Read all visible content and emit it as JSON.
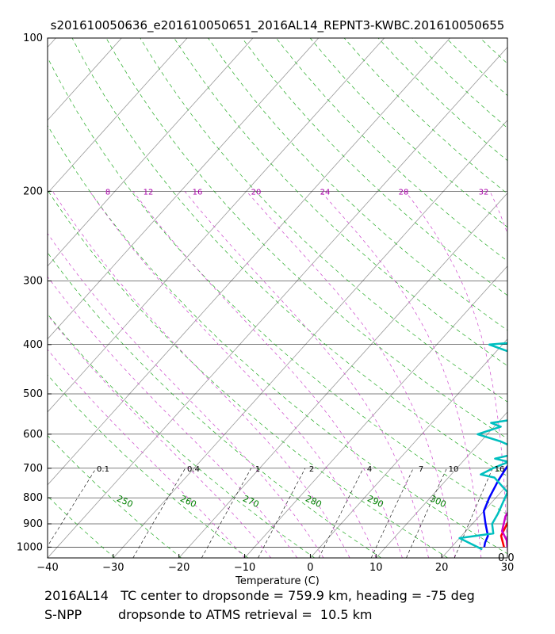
{
  "chart_data": {
    "type": "line",
    "subtype": "skew-t log-p",
    "title": "s201610050636_e201610050651_2016AL14_REPNT3-KWBC.201610050655",
    "xlabel": "Temperature (C)",
    "ylabel": "",
    "xlim": [
      -40,
      30
    ],
    "ylim": [
      1050,
      100
    ],
    "x_ticks": [
      -40,
      -30,
      -20,
      -10,
      0,
      10,
      20,
      30
    ],
    "y_ticks": [
      100,
      200,
      300,
      400,
      500,
      600,
      700,
      800,
      900,
      1000
    ],
    "mixing_ratio_labels": [
      "0.1",
      "0.4",
      "1",
      "2",
      "4",
      "7",
      "10",
      "16"
    ],
    "mixing_ratio_values": [
      0.1,
      0.4,
      1,
      2,
      4,
      7,
      10,
      16
    ],
    "dry_adiabat_labels": [
      "250",
      "260",
      "270",
      "280",
      "290",
      "300"
    ],
    "moist_adiabat_labels": [
      "8",
      "12",
      "16",
      "20",
      "24",
      "28",
      "32"
    ],
    "corner_label": "0.0",
    "series": [
      {
        "name": "temperature",
        "color": "#ff0000",
        "points": [
          [
            28,
            1000
          ],
          [
            26,
            950
          ],
          [
            24.5,
            850
          ],
          [
            24,
            760
          ],
          [
            23.5,
            700
          ],
          [
            22,
            600
          ],
          [
            21,
            550
          ],
          [
            20,
            500
          ],
          [
            18.5,
            450
          ],
          [
            17,
            400
          ],
          [
            15.5,
            360
          ],
          [
            13.5,
            320
          ],
          [
            12,
            300
          ],
          [
            8,
            250
          ],
          [
            5,
            220
          ],
          [
            2,
            200
          ],
          [
            -3,
            170
          ],
          [
            -6.5,
            150
          ],
          [
            -8.5,
            140
          ],
          [
            -8,
            130
          ],
          [
            -7,
            120
          ],
          [
            -5,
            110
          ],
          [
            -3,
            100
          ]
        ]
      },
      {
        "name": "dewpoint",
        "color": "#0000ff",
        "points": [
          [
            25,
            1000
          ],
          [
            24.5,
            980
          ],
          [
            24,
            950
          ],
          [
            22,
            900
          ],
          [
            20,
            850
          ],
          [
            19,
            800
          ],
          [
            18,
            740
          ],
          [
            17.5,
            700
          ],
          [
            17,
            650
          ],
          [
            18,
            600
          ],
          [
            17.5,
            560
          ],
          [
            16,
            520
          ],
          [
            14,
            500
          ],
          [
            10,
            450
          ],
          [
            6.5,
            400
          ],
          [
            3,
            360
          ],
          [
            0,
            320
          ],
          [
            -2,
            300
          ],
          [
            -7,
            250
          ],
          [
            -10,
            220
          ],
          [
            -12.5,
            200
          ],
          [
            -15,
            180
          ],
          [
            -17,
            165
          ],
          [
            -18,
            150
          ],
          [
            -17.5,
            140
          ],
          [
            -16,
            130
          ],
          [
            -14,
            120
          ],
          [
            -11.5,
            110
          ],
          [
            -9,
            100
          ]
        ]
      },
      {
        "name": "atms_temperature",
        "color": "#cc00cc",
        "points": [
          [
            28.5,
            1000
          ],
          [
            27.5,
            970
          ],
          [
            25.5,
            930
          ],
          [
            24,
            870
          ],
          [
            23,
            780
          ],
          [
            23,
            760
          ],
          [
            23.5,
            700
          ],
          [
            22,
            650
          ],
          [
            20,
            600
          ],
          [
            20.5,
            560
          ],
          [
            18.5,
            540
          ],
          [
            17.5,
            510
          ],
          [
            18,
            490
          ],
          [
            18,
            470
          ],
          [
            17,
            450
          ],
          [
            16,
            420
          ],
          [
            14,
            390
          ],
          [
            12.5,
            360
          ],
          [
            10,
            320
          ],
          [
            7.5,
            290
          ],
          [
            5.5,
            260
          ],
          [
            5,
            250
          ],
          [
            4,
            240
          ],
          [
            2,
            220
          ],
          [
            1,
            205
          ],
          [
            0.5,
            195
          ],
          [
            -1,
            180
          ]
        ]
      },
      {
        "name": "atms_dewpoint",
        "color": "#00bfbf",
        "points": [
          [
            25,
            1010
          ],
          [
            20,
            960
          ],
          [
            24.5,
            940
          ],
          [
            23,
            900
          ],
          [
            22.5,
            860
          ],
          [
            21,
            780
          ],
          [
            17,
            730
          ],
          [
            14.5,
            720
          ],
          [
            15.5,
            700
          ],
          [
            17,
            680
          ],
          [
            14.5,
            670
          ],
          [
            18,
            650
          ],
          [
            13,
            620
          ],
          [
            8.5,
            600
          ],
          [
            11,
            580
          ],
          [
            9,
            570
          ],
          [
            16,
            550
          ],
          [
            12,
            530
          ],
          [
            18.5,
            500
          ],
          [
            15,
            480
          ],
          [
            7,
            460
          ],
          [
            7.5,
            450
          ],
          [
            9.5,
            445
          ],
          [
            5,
            435
          ],
          [
            8.5,
            430
          ],
          [
            4,
            420
          ],
          [
            -2,
            400
          ],
          [
            8,
            390
          ],
          [
            15,
            370
          ],
          [
            13,
            360
          ],
          [
            12.5,
            350
          ],
          [
            11,
            320
          ],
          [
            6.5,
            270
          ],
          [
            3,
            260
          ],
          [
            -2,
            240
          ],
          [
            -1.5,
            230
          ],
          [
            -1,
            228
          ]
        ]
      }
    ]
  },
  "footer": {
    "line1": "2016AL14   TC center to dropsonde = 759.9 km, heading = -75 deg",
    "line2": "S-NPP         dropsonde to ATMS retrieval =  10.5 km"
  }
}
